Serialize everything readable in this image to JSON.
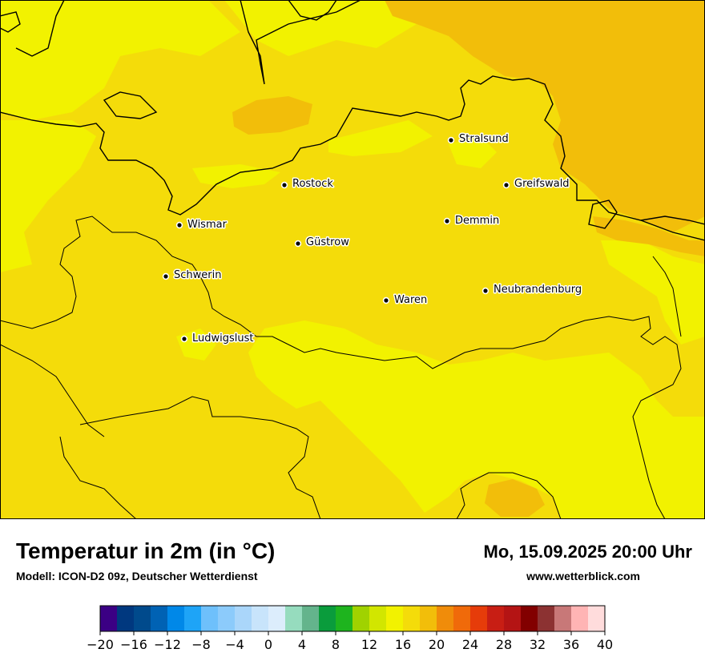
{
  "map": {
    "cities": [
      {
        "name": "Stralsund",
        "id": "stralsund"
      },
      {
        "name": "Rostock",
        "id": "rostock"
      },
      {
        "name": "Greifswald",
        "id": "greifswald"
      },
      {
        "name": "Wismar",
        "id": "wismar"
      },
      {
        "name": "Demmin",
        "id": "demmin"
      },
      {
        "name": "Güstrow",
        "id": "guestrow"
      },
      {
        "name": "Schwerin",
        "id": "schwerin"
      },
      {
        "name": "Neubrandenburg",
        "id": "neubrandenburg"
      },
      {
        "name": "Waren",
        "id": "waren"
      },
      {
        "name": "Ludwigslust",
        "id": "ludwigslust"
      }
    ],
    "colors": {
      "land_16_18": "#f4dc0a",
      "land_14_16": "#f2f200",
      "land_18_20": "#f2be0a",
      "coast_line": "#000000"
    }
  },
  "footer": {
    "title": "Temperatur in 2m (in °C)",
    "model": "Modell: ICON-D2 09z, Deutscher Wetterdienst",
    "date": "Mo, 15.09.2025 20:00 Uhr",
    "site": "www.wetterblick.com"
  },
  "legend": {
    "colors": [
      "#3b0084",
      "#00387f",
      "#004a8c",
      "#0062b4",
      "#0088e8",
      "#1ea4f7",
      "#6ec0fb",
      "#8ccbfb",
      "#aad6fa",
      "#c8e4fb",
      "#dcedfc",
      "#96dcbe",
      "#64b48c",
      "#0a9c3c",
      "#1eb41e",
      "#a0d200",
      "#d2e600",
      "#f2f200",
      "#f4dc0a",
      "#f2be0a",
      "#f08c0a",
      "#f06a0a",
      "#e63c0a",
      "#c81e14",
      "#b41414",
      "#820000",
      "#8c3232",
      "#c87878",
      "#ffb4b4",
      "#ffdcdc"
    ],
    "tick_labels": [
      "−20",
      "−16",
      "−12",
      "−8",
      "−4",
      "0",
      "4",
      "8",
      "12",
      "16",
      "20",
      "24",
      "28",
      "32",
      "36",
      "40"
    ]
  }
}
